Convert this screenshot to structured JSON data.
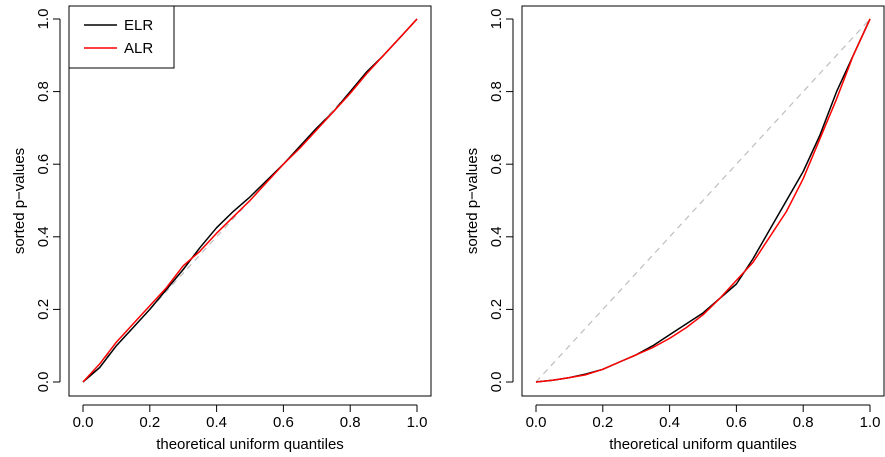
{
  "chart_data": [
    {
      "type": "line",
      "title": "",
      "xlabel": "theoretical uniform quantiles",
      "ylabel": "sorted p−values",
      "xlim": [
        0,
        1
      ],
      "ylim": [
        0,
        1
      ],
      "x_ticks": [
        "0.0",
        "0.2",
        "0.4",
        "0.6",
        "0.8",
        "1.0"
      ],
      "y_ticks": [
        "0.0",
        "0.2",
        "0.4",
        "0.6",
        "0.8",
        "1.0"
      ],
      "grid": false,
      "legend": {
        "placement": "top-left",
        "entries": [
          "ELR",
          "ALR"
        ]
      },
      "reference_line": {
        "style": "dashed",
        "color": "#bebebe",
        "x": [
          0,
          1
        ],
        "y": [
          0,
          1
        ]
      },
      "series": [
        {
          "name": "ELR",
          "color": "#000000",
          "x": [
            0.0,
            0.05,
            0.1,
            0.15,
            0.2,
            0.25,
            0.3,
            0.35,
            0.4,
            0.45,
            0.5,
            0.55,
            0.6,
            0.65,
            0.7,
            0.75,
            0.8,
            0.85,
            0.9,
            0.95,
            1.0
          ],
          "y": [
            0.0,
            0.04,
            0.1,
            0.15,
            0.2,
            0.255,
            0.31,
            0.37,
            0.425,
            0.47,
            0.51,
            0.555,
            0.6,
            0.65,
            0.7,
            0.745,
            0.8,
            0.855,
            0.9,
            0.95,
            1.0
          ]
        },
        {
          "name": "ALR",
          "color": "#ff0000",
          "x": [
            0.0,
            0.05,
            0.1,
            0.15,
            0.2,
            0.25,
            0.3,
            0.35,
            0.4,
            0.45,
            0.5,
            0.55,
            0.6,
            0.65,
            0.7,
            0.75,
            0.8,
            0.85,
            0.9,
            0.95,
            1.0
          ],
          "y": [
            0.0,
            0.05,
            0.11,
            0.16,
            0.21,
            0.26,
            0.32,
            0.36,
            0.41,
            0.455,
            0.5,
            0.55,
            0.6,
            0.645,
            0.695,
            0.745,
            0.795,
            0.85,
            0.9,
            0.95,
            1.0
          ]
        }
      ]
    },
    {
      "type": "line",
      "title": "",
      "xlabel": "theoretical uniform quantiles",
      "ylabel": "sorted p−values",
      "xlim": [
        0,
        1
      ],
      "ylim": [
        0,
        1
      ],
      "x_ticks": [
        "0.0",
        "0.2",
        "0.4",
        "0.6",
        "0.8",
        "1.0"
      ],
      "y_ticks": [
        "0.0",
        "0.2",
        "0.4",
        "0.6",
        "0.8",
        "1.0"
      ],
      "grid": false,
      "reference_line": {
        "style": "dashed",
        "color": "#bebebe",
        "x": [
          0,
          1
        ],
        "y": [
          0,
          1
        ]
      },
      "series": [
        {
          "name": "ELR",
          "color": "#000000",
          "x": [
            0.0,
            0.05,
            0.1,
            0.15,
            0.2,
            0.25,
            0.3,
            0.35,
            0.4,
            0.45,
            0.5,
            0.55,
            0.6,
            0.65,
            0.7,
            0.75,
            0.8,
            0.85,
            0.9,
            0.95,
            1.0
          ],
          "y": [
            0.0,
            0.005,
            0.012,
            0.022,
            0.035,
            0.055,
            0.075,
            0.1,
            0.13,
            0.16,
            0.19,
            0.23,
            0.27,
            0.34,
            0.42,
            0.5,
            0.58,
            0.68,
            0.8,
            0.9,
            1.0
          ]
        },
        {
          "name": "ALR",
          "color": "#ff0000",
          "x": [
            0.0,
            0.05,
            0.1,
            0.15,
            0.2,
            0.25,
            0.3,
            0.35,
            0.4,
            0.45,
            0.5,
            0.55,
            0.6,
            0.65,
            0.7,
            0.75,
            0.8,
            0.85,
            0.9,
            0.95,
            1.0
          ],
          "y": [
            0.0,
            0.005,
            0.012,
            0.02,
            0.035,
            0.055,
            0.075,
            0.095,
            0.12,
            0.15,
            0.185,
            0.23,
            0.28,
            0.33,
            0.4,
            0.47,
            0.56,
            0.67,
            0.78,
            0.9,
            1.0
          ]
        }
      ]
    }
  ]
}
